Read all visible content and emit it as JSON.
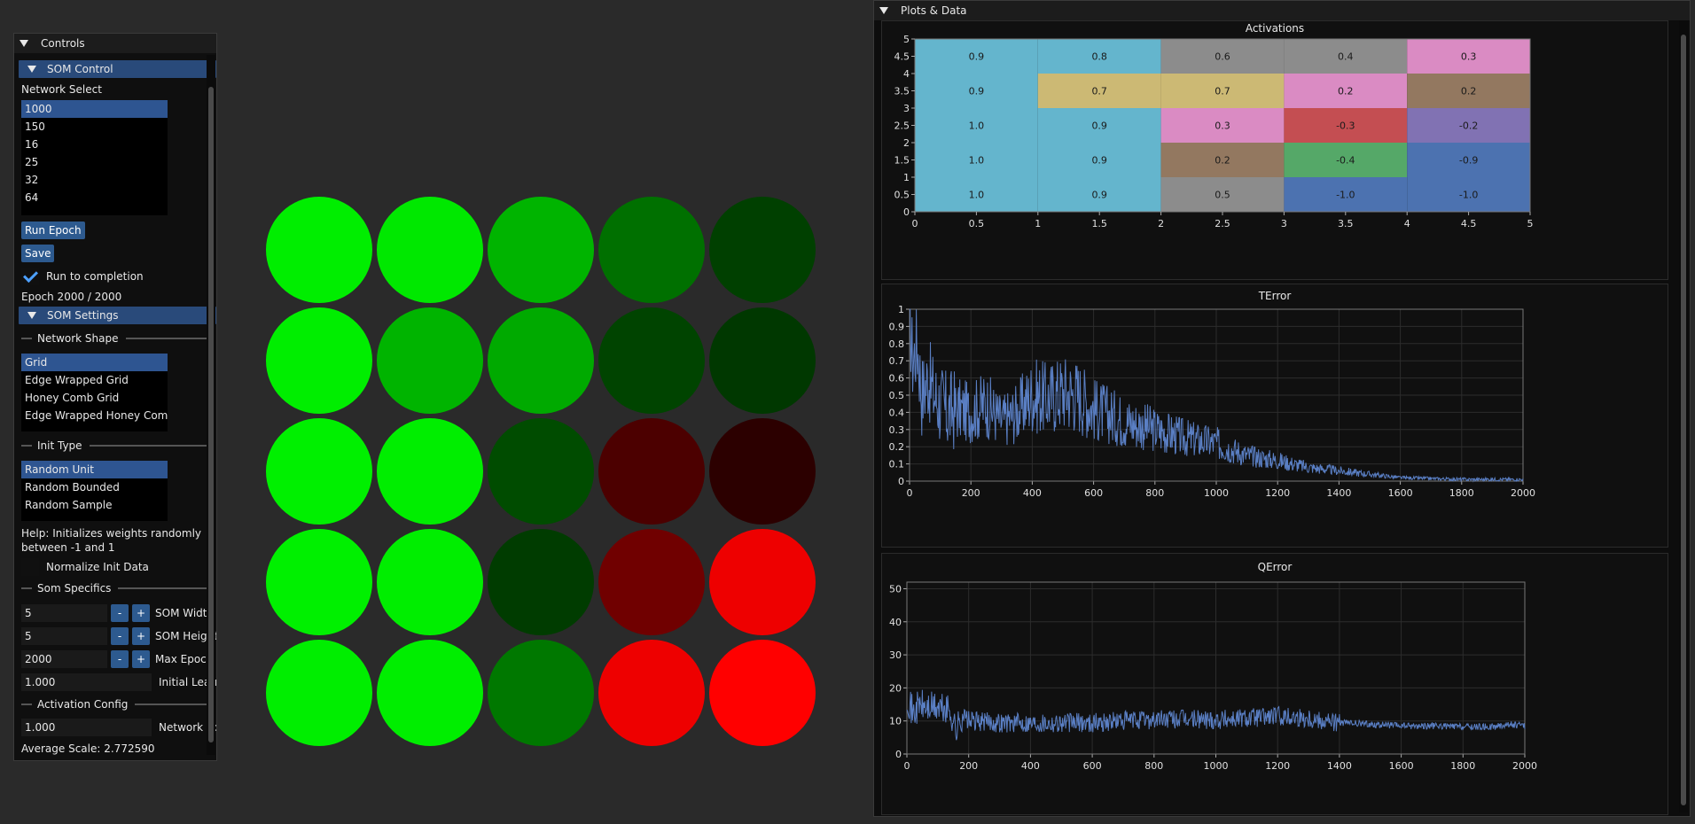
{
  "controls": {
    "title": "Controls",
    "som_control": {
      "header": "SOM Control",
      "network_select_label": "Network Select",
      "networks": [
        "1000",
        "150",
        "16",
        "25",
        "32",
        "64"
      ],
      "selected_network": "1000",
      "run_epoch_label": "Run Epoch",
      "save_label": "Save",
      "run_to_completion_label": "Run to completion",
      "run_to_completion_checked": true,
      "epoch_text": "Epoch 2000 / 2000"
    },
    "som_settings": {
      "header": "SOM Settings",
      "network_shape_label": "Network Shape",
      "shapes": [
        "Grid",
        "Edge Wrapped Grid",
        "Honey Comb Grid",
        "Edge Wrapped Honey Comb"
      ],
      "selected_shape": "Grid",
      "init_type_label": "Init Type",
      "init_types": [
        "Random Unit",
        "Random Bounded",
        "Random Sample"
      ],
      "selected_init_type": "Random Unit",
      "help_line1": "Help: Initializes weights randomly",
      "help_line2": "between -1 and 1",
      "normalize_label": "Normalize Init Data",
      "normalize_checked": false,
      "som_specifics_label": "Som Specifics",
      "som_width_value": "5",
      "som_width_label": "SOM Width",
      "som_height_value": "5",
      "som_height_label": "SOM Height",
      "max_epoch_value": "2000",
      "max_epoch_label": "Max Epoch",
      "learning_rate_value": "1.000",
      "learning_rate_label": "Initial Learning Rate",
      "minus": "-",
      "plus": "+",
      "activation_config_label": "Activation Config",
      "network_activation_value": "1.000",
      "network_activation_label": "Network Activation",
      "average_scale_text": "Average Scale: 2.772590"
    }
  },
  "som_grid": {
    "colors": [
      [
        "#00ee00",
        "#00e800",
        "#00b400",
        "#007000",
        "#004000"
      ],
      [
        "#00ee00",
        "#00b400",
        "#00aa00",
        "#004400",
        "#003800"
      ],
      [
        "#00f000",
        "#00ee00",
        "#004c00",
        "#4c0000",
        "#2c0000"
      ],
      [
        "#00f000",
        "#00ee00",
        "#003c00",
        "#700000",
        "#ee0000"
      ],
      [
        "#00ee00",
        "#00ee00",
        "#007800",
        "#ee0000",
        "#ff0000"
      ]
    ]
  },
  "plots": {
    "title": "Plots & Data",
    "activations": {
      "title": "Activations",
      "chart_data": {
        "type": "heatmap",
        "title": "Activations",
        "xlim": [
          0,
          5
        ],
        "ylim": [
          0,
          5
        ],
        "x_ticks": [
          "0",
          "0.5",
          "1",
          "1.5",
          "2",
          "2.5",
          "3",
          "3.5",
          "4",
          "4.5",
          "5"
        ],
        "y_ticks": [
          "0",
          "0.5",
          "1",
          "1.5",
          "2",
          "2.5",
          "3",
          "3.5",
          "4",
          "4.5",
          "5"
        ],
        "rows_top_to_bottom": [
          [
            "0.9",
            "0.8",
            "0.6",
            "0.4",
            "0.3"
          ],
          [
            "0.9",
            "0.7",
            "0.7",
            "0.2",
            "0.2"
          ],
          [
            "1.0",
            "0.9",
            "0.3",
            "-0.3",
            "-0.2"
          ],
          [
            "1.0",
            "0.9",
            "0.2",
            "-0.4",
            "-0.9"
          ],
          [
            "1.0",
            "0.9",
            "0.5",
            "-1.0",
            "-1.0"
          ]
        ],
        "cell_colors": [
          [
            "#64b5cd",
            "#64b5cd",
            "#8c8c8c",
            "#8c8c8c",
            "#da8bc3"
          ],
          [
            "#64b5cd",
            "#ccb974",
            "#ccb974",
            "#da8bc3",
            "#937860"
          ],
          [
            "#64b5cd",
            "#64b5cd",
            "#da8bc3",
            "#c44e52",
            "#8172b3"
          ],
          [
            "#64b5cd",
            "#64b5cd",
            "#937860",
            "#55a868",
            "#4c72b0"
          ],
          [
            "#64b5cd",
            "#64b5cd",
            "#8c8c8c",
            "#4c72b0",
            "#4c72b0"
          ]
        ]
      }
    },
    "terror": {
      "title": "TError",
      "chart_data": {
        "type": "line",
        "title": "TError",
        "xlim": [
          0,
          2000
        ],
        "ylim": [
          0,
          1
        ],
        "x_ticks": [
          "0",
          "200",
          "400",
          "600",
          "800",
          "1000",
          "1200",
          "1400",
          "1600",
          "1800",
          "2000"
        ],
        "y_ticks": [
          "0",
          "0.1",
          "0.2",
          "0.3",
          "0.4",
          "0.5",
          "0.6",
          "0.7",
          "0.8",
          "0.9",
          "1"
        ],
        "color": "#5a7fc4",
        "series": [
          {
            "x": [
              0,
              10,
              25,
              40,
              60,
              80,
              100,
              120,
              150,
              200,
              250,
              300,
              350,
              400,
              450,
              500,
              550,
              600,
              700,
              800,
              900,
              1000,
              1100,
              1200,
              1300,
              1400,
              1500,
              1600,
              1700,
              1800,
              1900,
              2000
            ],
            "y": [
              0.95,
              0.7,
              0.8,
              0.5,
              0.6,
              0.5,
              0.45,
              0.4,
              0.42,
              0.4,
              0.45,
              0.35,
              0.4,
              0.5,
              0.48,
              0.52,
              0.5,
              0.42,
              0.35,
              0.3,
              0.25,
              0.22,
              0.15,
              0.12,
              0.08,
              0.06,
              0.04,
              0.02,
              0.015,
              0.01,
              0.01,
              0.01
            ]
          }
        ]
      }
    },
    "qerror": {
      "title": "QError",
      "chart_data": {
        "type": "line",
        "title": "QError",
        "xlim": [
          0,
          2000
        ],
        "ylim": [
          0,
          52
        ],
        "x_ticks": [
          "0",
          "200",
          "400",
          "600",
          "800",
          "1000",
          "1200",
          "1400",
          "1600",
          "1800",
          "2000"
        ],
        "y_ticks": [
          "0",
          "10",
          "20",
          "30",
          "40",
          "50"
        ],
        "color": "#5a7fc4",
        "series": [
          {
            "x": [
              0,
              20,
              40,
              60,
              100,
              140,
              160,
              180,
              200,
              300,
              400,
              500,
              600,
              700,
              800,
              900,
              1000,
              1100,
              1200,
              1300,
              1400,
              1500,
              1600,
              1700,
              1800,
              1900,
              1950,
              2000
            ],
            "y": [
              18,
              12,
              15,
              14,
              14,
              13,
              7,
              12,
              10,
              9.5,
              9.5,
              9.5,
              9.5,
              10,
              10.5,
              10.5,
              10.5,
              11,
              11.5,
              11,
              9.5,
              9,
              8.5,
              8.5,
              8.2,
              8.2,
              9,
              8.5
            ]
          }
        ]
      }
    }
  }
}
